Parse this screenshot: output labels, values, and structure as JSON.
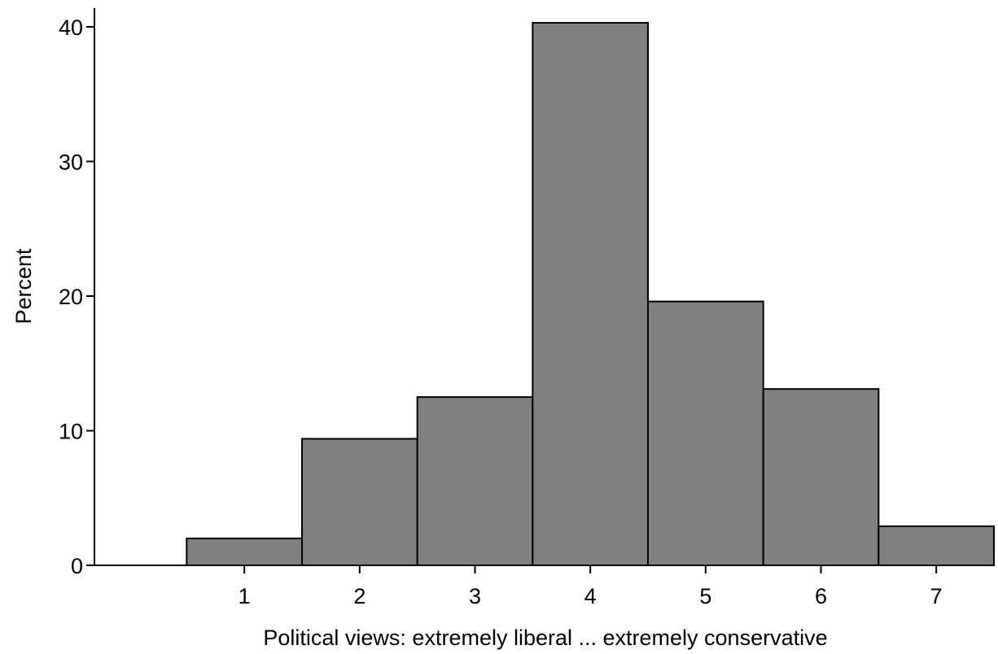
{
  "chart_data": {
    "type": "bar",
    "title": "",
    "xlabel": "Political views: extremely liberal ... extremely conservative",
    "ylabel": "Percent",
    "categories": [
      "1",
      "2",
      "3",
      "4",
      "5",
      "6",
      "7"
    ],
    "x": [
      1,
      2,
      3,
      4,
      5,
      6,
      7
    ],
    "values": [
      2.0,
      9.4,
      12.5,
      40.3,
      19.6,
      13.1,
      2.9
    ],
    "bin_width": 1,
    "xlim": [
      -0.3,
      7.5
    ],
    "ylim": [
      0,
      40
    ],
    "y_ticks": [
      0,
      10,
      20,
      30,
      40
    ],
    "grid": false,
    "legend": "none",
    "colors": {
      "bar_fill": "#808080",
      "bar_stroke": "#000000",
      "axis": "#000000"
    }
  }
}
